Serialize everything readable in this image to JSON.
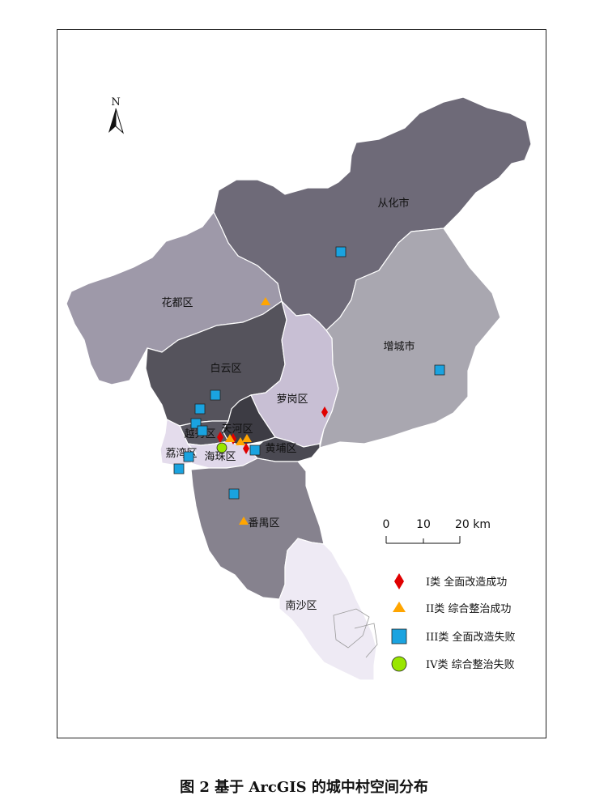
{
  "north_label": "N",
  "districts": {
    "conghua": {
      "name": "从化市",
      "color": "#6e6a78"
    },
    "zengcheng": {
      "name": "增城市",
      "color": "#a9a7b0"
    },
    "huadu": {
      "name": "花都区",
      "color": "#9e99a9"
    },
    "baiyun": {
      "name": "白云区",
      "color": "#55535c"
    },
    "luogang": {
      "name": "萝岗区",
      "color": "#c8bfd4"
    },
    "tianhe": {
      "name": "天河区",
      "color": "#3d3c44"
    },
    "yuexiu": {
      "name": "越秀区",
      "color": "#5a5862"
    },
    "liwan": {
      "name": "荔湾区",
      "color": "#e4dcec"
    },
    "haizhu": {
      "name": "海珠区",
      "color": "#e0d8ea"
    },
    "huangpu": {
      "name": "黄埔区",
      "color": "#4a4952"
    },
    "panyu": {
      "name": "番禺区",
      "color": "#86828e"
    },
    "nansha": {
      "name": "南沙区",
      "color": "#eeeaf4"
    }
  },
  "scale": {
    "labels": [
      "0",
      "10",
      "20 km"
    ]
  },
  "legend": [
    {
      "symbol": "diamond",
      "color": "#e00000",
      "label": "I类  全面改造成功"
    },
    {
      "symbol": "triangle",
      "color": "#ffa500",
      "label": "II类  综合整治成功"
    },
    {
      "symbol": "square",
      "color": "#1aa3e0",
      "label": "III类  全面改造失败"
    },
    {
      "symbol": "circle",
      "color": "#99e600",
      "label": "IV类  综合整治失败"
    }
  ],
  "caption": "图 2  基于 ArcGIS 的城中村空间分布"
}
